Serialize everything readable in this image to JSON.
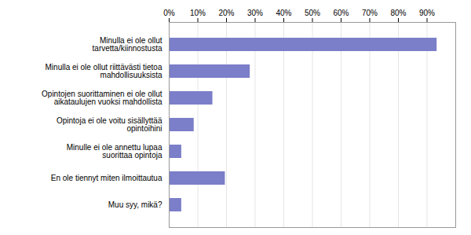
{
  "chart_data": {
    "type": "bar",
    "orientation": "horizontal",
    "categories": [
      "Muu syy, mikä?",
      "En ole tiennyt miten ilmoittautua",
      "Minulle ei ole annettu lupaa\nsuorittaa opintoja",
      "Opintoja ei ole voitu sisällyttää\nopintoihini",
      "Opintojen suorittaminen ei ole ollut\naikataulujen vuoksi mahdollista",
      "Minulla ei ole ollut riittävästi tietoa\nmahdollisuuksista",
      "Minulla ei ole ollut\ntarvetta/kiinnostusta"
    ],
    "values": [
      4.35,
      19.57,
      4.35,
      8.7,
      15.22,
      28.26,
      93.48
    ],
    "color": "#7b7ec8",
    "xlim": [
      0,
      100
    ],
    "xticks": [
      {
        "value": 0,
        "label": "0%"
      },
      {
        "value": 10,
        "label": "10%"
      },
      {
        "value": 20,
        "label": "20%"
      },
      {
        "value": 30,
        "label": "30%"
      },
      {
        "value": 40,
        "label": "40%"
      },
      {
        "value": 50,
        "label": "50%"
      },
      {
        "value": 60,
        "label": "60%"
      },
      {
        "value": 70,
        "label": "70%"
      },
      {
        "value": 80,
        "label": "80%"
      },
      {
        "value": 90,
        "label": "90%"
      }
    ],
    "grid": true
  }
}
